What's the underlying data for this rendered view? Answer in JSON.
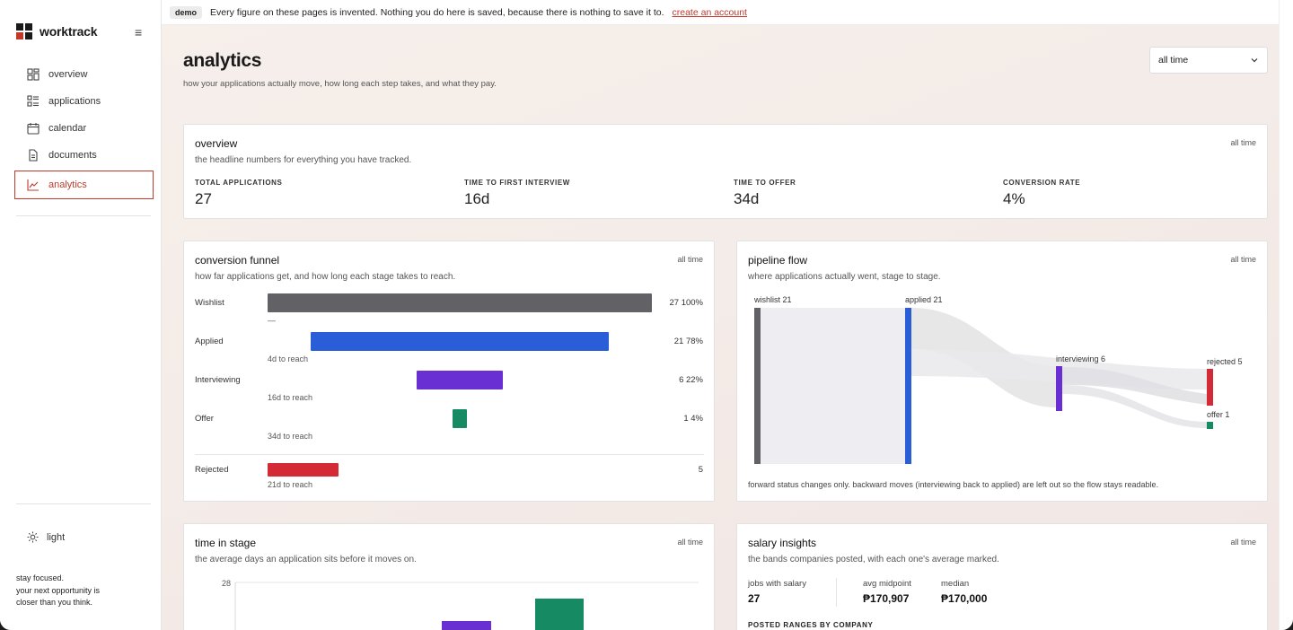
{
  "brand": {
    "name": "worktrack"
  },
  "sidebar": {
    "items": [
      {
        "label": "overview",
        "icon": "grid-icon"
      },
      {
        "label": "applications",
        "icon": "list-icon"
      },
      {
        "label": "calendar",
        "icon": "calendar-icon"
      },
      {
        "label": "documents",
        "icon": "document-icon"
      },
      {
        "label": "analytics",
        "icon": "chart-line-icon",
        "active": true
      }
    ],
    "theme_label": "light",
    "tagline_1": "stay focused.",
    "tagline_2": "your next opportunity is",
    "tagline_3": "closer than you think."
  },
  "banner": {
    "badge": "demo",
    "text": "Every figure on these pages is invented. Nothing you do here is saved, because there is nothing to save it to.",
    "link": "create an account"
  },
  "header": {
    "title": "analytics",
    "subtitle": "how your applications actually move, how long each step takes, and what they pay.",
    "range": "all time"
  },
  "overview": {
    "title": "overview",
    "subtitle": "the headline numbers for everything you have tracked.",
    "tag": "all time",
    "stats": [
      {
        "label": "TOTAL APPLICATIONS",
        "value": "27"
      },
      {
        "label": "TIME TO FIRST INTERVIEW",
        "value": "16d"
      },
      {
        "label": "TIME TO OFFER",
        "value": "34d"
      },
      {
        "label": "CONVERSION RATE",
        "value": "4%"
      }
    ]
  },
  "funnel": {
    "title": "conversion funnel",
    "subtitle": "how far applications get, and how long each stage takes to reach.",
    "tag": "all time",
    "stages": [
      {
        "label": "Wishlist",
        "value": "27 100%",
        "reach": "—",
        "count": 27,
        "color": "#626166"
      },
      {
        "label": "Applied",
        "value": "21 78%",
        "reach": "4d to reach",
        "count": 21,
        "color": "#2a5ed8"
      },
      {
        "label": "Interviewing",
        "value": "6 22%",
        "reach": "16d to reach",
        "count": 6,
        "color": "#6a2fd2"
      },
      {
        "label": "Offer",
        "value": "1 4%",
        "reach": "34d to reach",
        "count": 1,
        "color": "#168a62"
      }
    ],
    "rejected": {
      "label": "Rejected",
      "value": "5",
      "reach": "21d to reach",
      "count": 5,
      "color": "#d42a35"
    }
  },
  "flow": {
    "title": "pipeline flow",
    "subtitle": "where applications actually went, stage to stage.",
    "tag": "all time",
    "nodes": {
      "wishlist": "wishlist 21",
      "applied": "applied 21",
      "interviewing": "interviewing 6",
      "rejected": "rejected 5",
      "offer": "offer 1"
    },
    "note": "forward status changes only. backward moves (interviewing back to applied) are left out so the flow stays readable."
  },
  "time_in_stage": {
    "title": "time in stage",
    "subtitle": "the average days an application sits before it moves on.",
    "tag": "all time",
    "y_tick": "28"
  },
  "salary": {
    "title": "salary insights",
    "subtitle": "the bands companies posted, with each one's average marked.",
    "tag": "all time",
    "stats": [
      {
        "label": "jobs with salary",
        "value": "27"
      },
      {
        "label": "avg midpoint",
        "value": "₱170,907"
      },
      {
        "label": "median",
        "value": "₱170,000"
      }
    ],
    "posted_label": "POSTED RANGES BY COMPANY"
  }
}
